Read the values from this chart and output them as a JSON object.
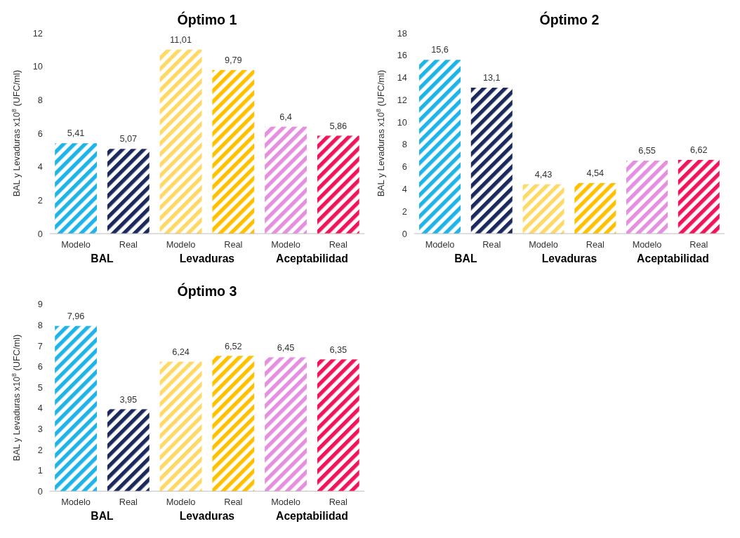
{
  "chart_data": [
    {
      "type": "bar",
      "title": "Óptimo 1",
      "ylabel": "BAL y Levaduras x10$^{8}$ (UFC/ml)",
      "categories": [
        "Modelo",
        "Real",
        "Modelo",
        "Real",
        "Modelo",
        "Real"
      ],
      "values": [
        5.41,
        5.07,
        11.01,
        9.79,
        6.4,
        5.86
      ],
      "value_labels": [
        "5,41",
        "5,07",
        "11,01",
        "9,79",
        "6,4",
        "5,86"
      ],
      "colors": [
        "#1fb4e8",
        "#1b2a5c",
        "#ffd966",
        "#ffc000",
        "#e58fdf",
        "#f0145a"
      ],
      "ylim": [
        0,
        12
      ],
      "yticks": [
        0,
        2,
        4,
        6,
        8,
        10,
        12
      ],
      "annotations": [
        "BAL",
        "Levaduras",
        "Aceptabilidad"
      ]
    },
    {
      "type": "bar",
      "title": "Óptimo 2",
      "ylabel": "BAL y Levaduras x10$^{8}$ (UFC/ml)",
      "categories": [
        "Modelo",
        "Real",
        "Modelo",
        "Real",
        "Modelo",
        "Real"
      ],
      "values": [
        15.6,
        13.1,
        4.43,
        4.54,
        6.55,
        6.62
      ],
      "value_labels": [
        "15,6",
        "13,1",
        "4,43",
        "4,54",
        "6,55",
        "6,62"
      ],
      "colors": [
        "#1fb4e8",
        "#1b2a5c",
        "#ffd966",
        "#ffc000",
        "#e58fdf",
        "#f0145a"
      ],
      "ylim": [
        0,
        18
      ],
      "yticks": [
        0,
        2,
        4,
        6,
        8,
        10,
        12,
        14,
        16,
        18
      ],
      "annotations": [
        "BAL",
        "Levaduras",
        "Aceptabilidad"
      ]
    },
    {
      "type": "bar",
      "title": "Óptimo 3",
      "ylabel": "BAL y Levaduras x10$^{8}$ (UFC/ml)",
      "categories": [
        "Modelo",
        "Real",
        "Modelo",
        "Real",
        "Modelo",
        "Real"
      ],
      "values": [
        7.96,
        3.95,
        6.24,
        6.52,
        6.45,
        6.35
      ],
      "value_labels": [
        "7,96",
        "3,95",
        "6,24",
        "6,52",
        "6,45",
        "6,35"
      ],
      "colors": [
        "#1fb4e8",
        "#1b2a5c",
        "#ffd966",
        "#ffc000",
        "#e58fdf",
        "#f0145a"
      ],
      "ylim": [
        0,
        9
      ],
      "yticks": [
        0,
        1,
        2,
        3,
        4,
        5,
        6,
        7,
        8,
        9
      ],
      "annotations": [
        "BAL",
        "Levaduras",
        "Aceptabilidad"
      ]
    }
  ]
}
